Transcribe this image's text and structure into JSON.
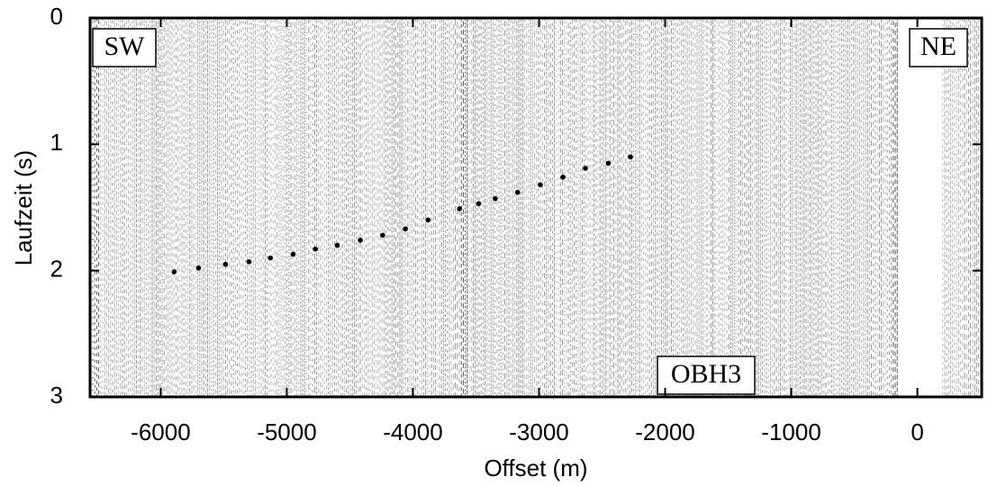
{
  "chart_data": {
    "type": "scatter",
    "x_label": "Offset (m)",
    "y_label": "Laufzeit (s)",
    "annotations": [
      "SW",
      "NE",
      "OBH3"
    ],
    "xlim": [
      -6560,
      510
    ],
    "ylim": [
      0,
      3
    ],
    "y_inverted": true,
    "xticks": [
      -6000,
      -5000,
      -4000,
      -3000,
      -2000,
      -1000,
      0
    ],
    "yticks": [
      0,
      1,
      2,
      3
    ],
    "color": "#000000",
    "x": [
      -5893,
      -5700,
      -5486,
      -5300,
      -5130,
      -4950,
      -4773,
      -4600,
      -4417,
      -4240,
      -4060,
      -3880,
      -3630,
      -3480,
      -3347,
      -3170,
      -2990,
      -2810,
      -2632,
      -2450,
      -2275
    ],
    "y": [
      2.01,
      1.98,
      1.95,
      1.93,
      1.9,
      1.87,
      1.83,
      1.8,
      1.76,
      1.72,
      1.67,
      1.6,
      1.51,
      1.47,
      1.43,
      1.38,
      1.32,
      1.26,
      1.19,
      1.15,
      1.1
    ]
  }
}
